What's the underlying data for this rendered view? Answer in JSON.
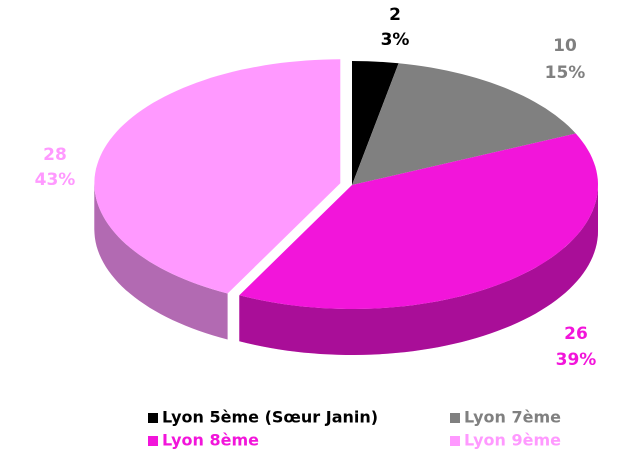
{
  "chart_data": {
    "type": "pie",
    "categories": [
      "Lyon 5ème (Sœur Janin)",
      "Lyon 7ème",
      "Lyon 8ème",
      "Lyon 9ème"
    ],
    "values": [
      2,
      10,
      26,
      28
    ],
    "percent_labels": [
      "3%",
      "15%",
      "39%",
      "43%"
    ],
    "colors": [
      "#000000",
      "#808080",
      "#f215da",
      "#ff99ff"
    ],
    "label_colors": [
      "#000000",
      "#808080",
      "#f215da",
      "#ff99ff"
    ],
    "legend": "bottom"
  }
}
